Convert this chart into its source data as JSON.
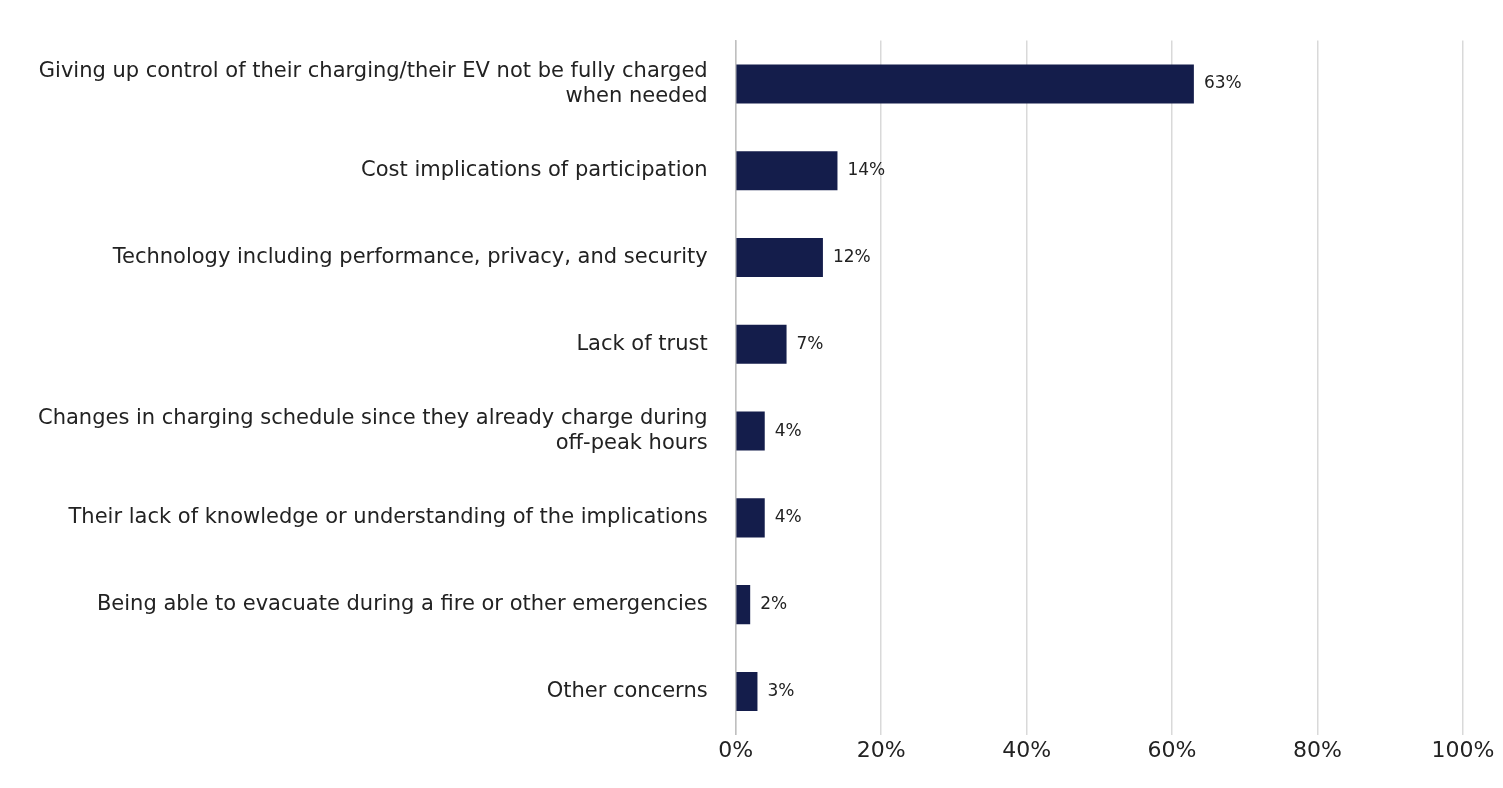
{
  "chart_data": {
    "type": "bar",
    "orientation": "horizontal",
    "categories": [
      "Giving up control of their charging/their EV not be fully charged when needed",
      "Cost implications of participation",
      "Technology including performance, privacy, and security",
      "Lack of trust",
      "Changes in charging schedule since they already charge during off-peak hours",
      "Their lack of knowledge or understanding of the implications",
      "Being able to evacuate during a fire or other emergencies",
      "Other concerns"
    ],
    "values": [
      63,
      14,
      12,
      7,
      4,
      4,
      2,
      3
    ],
    "value_labels": [
      "63%",
      "14%",
      "12%",
      "7%",
      "4%",
      "4%",
      "2%",
      "3%"
    ],
    "color": "#141d4b",
    "xlim": [
      0,
      100
    ],
    "xticks": [
      {
        "value": 0,
        "label": "0%"
      },
      {
        "value": 20,
        "label": "20%"
      },
      {
        "value": 40,
        "label": "40%"
      },
      {
        "value": 60,
        "label": "60%"
      },
      {
        "value": 80,
        "label": "80%"
      },
      {
        "value": 100,
        "label": "100%"
      }
    ],
    "grid": "x",
    "legend": false
  }
}
